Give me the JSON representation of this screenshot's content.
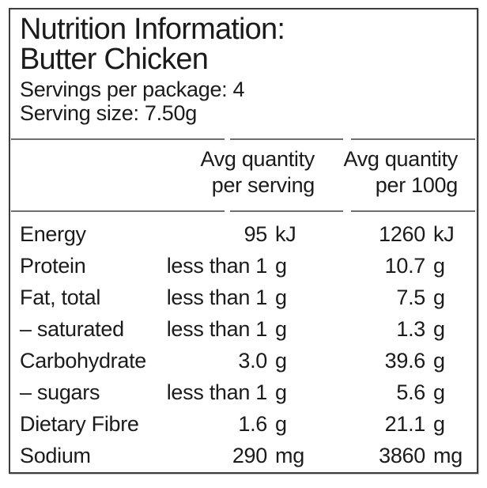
{
  "label": {
    "title_line1": "Nutrition Information:",
    "title_line2": "Butter Chicken",
    "servings_per_package": "Servings per package: 4",
    "serving_size": "Serving size: 7.50g"
  },
  "table": {
    "headers": {
      "per_serving_line1": "Avg quantity",
      "per_serving_line2": "per serving",
      "per_100g_line1": "Avg quantity",
      "per_100g_line2": "per 100g"
    },
    "rows": [
      {
        "label": "Energy",
        "serving_value": "95",
        "serving_unit": "kJ",
        "per_100g_value": "1260",
        "per_100g_unit": "kJ"
      },
      {
        "label": "Protein",
        "serving_value": "less than 1",
        "serving_unit": "g",
        "per_100g_value": "10.7",
        "per_100g_unit": "g"
      },
      {
        "label": "Fat, total",
        "serving_value": "less than 1",
        "serving_unit": "g",
        "per_100g_value": "7.5",
        "per_100g_unit": "g"
      },
      {
        "label": "– saturated",
        "serving_value": "less than 1",
        "serving_unit": "g",
        "per_100g_value": "1.3",
        "per_100g_unit": "g"
      },
      {
        "label": "Carbohydrate",
        "serving_value": "3.0",
        "serving_unit": "g",
        "per_100g_value": "39.6",
        "per_100g_unit": "g"
      },
      {
        "label": "– sugars",
        "serving_value": "less than 1",
        "serving_unit": "g",
        "per_100g_value": "5.6",
        "per_100g_unit": "g"
      },
      {
        "label": "Dietary Fibre",
        "serving_value": "1.6",
        "serving_unit": "g",
        "per_100g_value": "21.1",
        "per_100g_unit": "g"
      },
      {
        "label": "Sodium",
        "serving_value": "290",
        "serving_unit": "mg",
        "per_100g_value": "3860",
        "per_100g_unit": "mg"
      }
    ]
  },
  "colors": {
    "text": "#1b1b1b",
    "rule": "#6e6e6e",
    "border": "#3d3d3d",
    "background": "#ffffff"
  }
}
